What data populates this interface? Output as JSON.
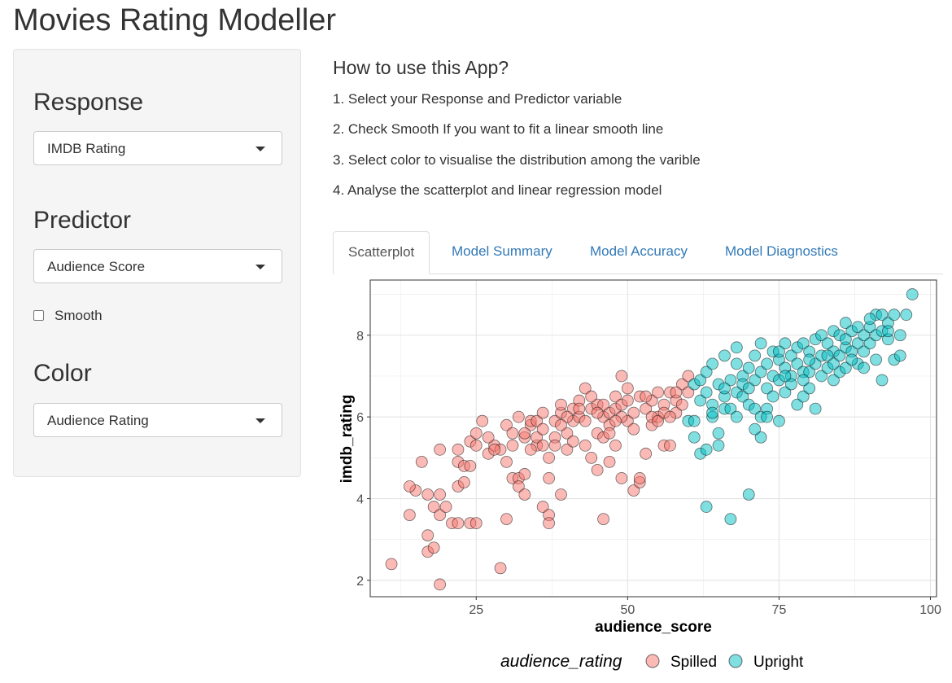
{
  "app": {
    "title": "Movies Rating Modeller"
  },
  "sidebar": {
    "response": {
      "label": "Response",
      "selected": "IMDB Rating"
    },
    "predictor": {
      "label": "Predictor",
      "selected": "Audience Score"
    },
    "smooth": {
      "label": "Smooth",
      "checked": false
    },
    "color": {
      "label": "Color",
      "selected": "Audience Rating"
    }
  },
  "help": {
    "title": "How to use this App?",
    "steps": [
      "1. Select your Response and Predictor variable",
      "2. Check Smooth If you want to fit a linear smooth line",
      "3. Select color to visualise the distribution among the varible",
      "4. Analyse the scatterplot and linear regression model"
    ]
  },
  "tabs": [
    {
      "label": "Scatterplot",
      "active": true
    },
    {
      "label": "Model Summary",
      "active": false
    },
    {
      "label": "Model Accuracy",
      "active": false
    },
    {
      "label": "Model Diagnostics",
      "active": false
    }
  ],
  "chart_data": {
    "type": "scatter",
    "xlabel": "audience_score",
    "ylabel": "imdb_rating",
    "xlim": [
      7.5,
      101
    ],
    "ylim": [
      1.6,
      9.35
    ],
    "xticks": [
      25,
      50,
      75,
      100
    ],
    "yticks": [
      2,
      4,
      6,
      8
    ],
    "grid": true,
    "legend": {
      "title": "audience_rating",
      "position": "bottom"
    },
    "series": [
      {
        "name": "Spilled",
        "color": "#F8766D",
        "points": [
          [
            11,
            2.4
          ],
          [
            14,
            3.6
          ],
          [
            15,
            4.2
          ],
          [
            14,
            4.3
          ],
          [
            16,
            4.9
          ],
          [
            17,
            3.1
          ],
          [
            17,
            2.7
          ],
          [
            18,
            2.8
          ],
          [
            19,
            1.9
          ],
          [
            17,
            4.1
          ],
          [
            19,
            4.1
          ],
          [
            18,
            3.8
          ],
          [
            19,
            3.6
          ],
          [
            19,
            5.2
          ],
          [
            20,
            3.8
          ],
          [
            21,
            3.4
          ],
          [
            22,
            3.4
          ],
          [
            22,
            4.3
          ],
          [
            23,
            4.4
          ],
          [
            22,
            4.9
          ],
          [
            24,
            3.4
          ],
          [
            25,
            3.4
          ],
          [
            22,
            5.2
          ],
          [
            24,
            5.4
          ],
          [
            23,
            4.8
          ],
          [
            24,
            4.8
          ],
          [
            25,
            5.6
          ],
          [
            26,
            5.9
          ],
          [
            25,
            5.3
          ],
          [
            27,
            5.1
          ],
          [
            28,
            5.3
          ],
          [
            29,
            5.2
          ],
          [
            29,
            2.3
          ],
          [
            30,
            3.5
          ],
          [
            30,
            4.9
          ],
          [
            31,
            4.5
          ],
          [
            31,
            5.3
          ],
          [
            32,
            4.5
          ],
          [
            32,
            4.3
          ],
          [
            33,
            4.1
          ],
          [
            33,
            4.6
          ],
          [
            33,
            5.5
          ],
          [
            34,
            5.8
          ],
          [
            34,
            5.9
          ],
          [
            35,
            5.3
          ],
          [
            35,
            5.9
          ],
          [
            36,
            6.1
          ],
          [
            36,
            3.8
          ],
          [
            37,
            3.6
          ],
          [
            37,
            3.4
          ],
          [
            37,
            4.5
          ],
          [
            37,
            5.0
          ],
          [
            38,
            5.5
          ],
          [
            38,
            5.9
          ],
          [
            39,
            6.1
          ],
          [
            39,
            6.3
          ],
          [
            39,
            4.1
          ],
          [
            40,
            5.2
          ],
          [
            40,
            5.6
          ],
          [
            41,
            5.9
          ],
          [
            41,
            6.2
          ],
          [
            42,
            6.4
          ],
          [
            42,
            6.0
          ],
          [
            43,
            6.7
          ],
          [
            43,
            5.3
          ],
          [
            44,
            5.0
          ],
          [
            44,
            6.2
          ],
          [
            45,
            6.3
          ],
          [
            45,
            5.6
          ],
          [
            45,
            4.7
          ],
          [
            46,
            5.5
          ],
          [
            46,
            6.0
          ],
          [
            46,
            3.5
          ],
          [
            47,
            5.8
          ],
          [
            47,
            6.1
          ],
          [
            47,
            4.9
          ],
          [
            48,
            6.5
          ],
          [
            48,
            6.2
          ],
          [
            48,
            5.3
          ],
          [
            49,
            7.0
          ],
          [
            49,
            6.3
          ],
          [
            49,
            4.5
          ],
          [
            50,
            6.4
          ],
          [
            50,
            5.9
          ],
          [
            51,
            6.1
          ],
          [
            51,
            4.2
          ],
          [
            52,
            6.5
          ],
          [
            52,
            4.4
          ],
          [
            52,
            4.5
          ],
          [
            53,
            6.2
          ],
          [
            53,
            5.1
          ],
          [
            54,
            6.4
          ],
          [
            54,
            5.8
          ],
          [
            55,
            6.6
          ],
          [
            55,
            6.0
          ],
          [
            56,
            6.3
          ],
          [
            56,
            5.3
          ],
          [
            57,
            6.6
          ],
          [
            57,
            5.3
          ],
          [
            58,
            6.4
          ],
          [
            58,
            6.1
          ],
          [
            59,
            6.8
          ],
          [
            59,
            6.3
          ],
          [
            60,
            6.6
          ],
          [
            60,
            7.0
          ],
          [
            27,
            5.5
          ],
          [
            28,
            5.2
          ],
          [
            30,
            5.8
          ],
          [
            31,
            5.6
          ],
          [
            32,
            6.0
          ],
          [
            34,
            5.2
          ],
          [
            35,
            5.5
          ],
          [
            36,
            5.7
          ],
          [
            38,
            5.3
          ],
          [
            40,
            6.0
          ],
          [
            41,
            5.4
          ],
          [
            43,
            5.9
          ],
          [
            44,
            6.5
          ],
          [
            46,
            6.3
          ],
          [
            47,
            5.6
          ],
          [
            49,
            6.0
          ],
          [
            50,
            6.7
          ],
          [
            51,
            5.7
          ],
          [
            53,
            6.5
          ],
          [
            54,
            6.0
          ],
          [
            55,
            5.9
          ],
          [
            56,
            6.1
          ],
          [
            57,
            6.0
          ],
          [
            58,
            6.6
          ],
          [
            42,
            6.2
          ],
          [
            39,
            5.8
          ],
          [
            36,
            5.3
          ],
          [
            33,
            5.6
          ],
          [
            45,
            6.1
          ],
          [
            48,
            5.9
          ]
        ]
      },
      {
        "name": "Upright",
        "color": "#00BFC4",
        "points": [
          [
            60,
            5.9
          ],
          [
            61,
            6.8
          ],
          [
            61,
            5.5
          ],
          [
            61,
            5.9
          ],
          [
            62,
            6.4
          ],
          [
            62,
            5.1
          ],
          [
            62,
            6.9
          ],
          [
            63,
            6.6
          ],
          [
            63,
            7.1
          ],
          [
            63,
            5.2
          ],
          [
            64,
            6.3
          ],
          [
            64,
            7.3
          ],
          [
            64,
            6.0
          ],
          [
            65,
            6.8
          ],
          [
            65,
            5.3
          ],
          [
            65,
            5.6
          ],
          [
            66,
            7.5
          ],
          [
            66,
            6.2
          ],
          [
            66,
            6.5
          ],
          [
            67,
            6.9
          ],
          [
            67,
            6.2
          ],
          [
            67,
            3.5
          ],
          [
            68,
            7.3
          ],
          [
            68,
            6.6
          ],
          [
            68,
            6.0
          ],
          [
            69,
            7.0
          ],
          [
            69,
            6.5
          ],
          [
            70,
            7.2
          ],
          [
            70,
            6.3
          ],
          [
            70,
            4.1
          ],
          [
            71,
            7.5
          ],
          [
            71,
            6.9
          ],
          [
            71,
            6.2
          ],
          [
            72,
            7.8
          ],
          [
            72,
            7.1
          ],
          [
            72,
            6.0
          ],
          [
            72,
            5.5
          ],
          [
            73,
            7.3
          ],
          [
            73,
            6.7
          ],
          [
            73,
            6.2
          ],
          [
            74,
            7.6
          ],
          [
            74,
            7.0
          ],
          [
            74,
            6.5
          ],
          [
            75,
            7.4
          ],
          [
            75,
            6.9
          ],
          [
            75,
            5.9
          ],
          [
            76,
            7.8
          ],
          [
            76,
            7.2
          ],
          [
            76,
            6.6
          ],
          [
            77,
            7.5
          ],
          [
            77,
            7.0
          ],
          [
            78,
            7.7
          ],
          [
            78,
            7.3
          ],
          [
            78,
            6.3
          ],
          [
            79,
            7.8
          ],
          [
            79,
            7.1
          ],
          [
            79,
            6.5
          ],
          [
            80,
            7.6
          ],
          [
            80,
            7.1
          ],
          [
            80,
            6.7
          ],
          [
            81,
            7.9
          ],
          [
            81,
            7.3
          ],
          [
            81,
            6.2
          ],
          [
            82,
            8.0
          ],
          [
            82,
            7.5
          ],
          [
            82,
            7.0
          ],
          [
            83,
            7.8
          ],
          [
            83,
            7.2
          ],
          [
            84,
            8.1
          ],
          [
            84,
            7.6
          ],
          [
            84,
            6.9
          ],
          [
            85,
            8.0
          ],
          [
            85,
            7.5
          ],
          [
            85,
            7.1
          ],
          [
            86,
            8.3
          ],
          [
            86,
            7.7
          ],
          [
            86,
            7.2
          ],
          [
            87,
            8.1
          ],
          [
            87,
            7.6
          ],
          [
            88,
            8.2
          ],
          [
            88,
            7.8
          ],
          [
            88,
            7.3
          ],
          [
            89,
            8.0
          ],
          [
            89,
            7.6
          ],
          [
            90,
            8.2
          ],
          [
            90,
            7.8
          ],
          [
            91,
            8.5
          ],
          [
            91,
            8.0
          ],
          [
            91,
            7.4
          ],
          [
            92,
            8.5
          ],
          [
            92,
            8.1
          ],
          [
            92,
            6.9
          ],
          [
            93,
            8.3
          ],
          [
            93,
            7.9
          ],
          [
            94,
            8.5
          ],
          [
            94,
            7.4
          ],
          [
            95,
            7.5
          ],
          [
            95,
            8.0
          ],
          [
            96,
            8.5
          ],
          [
            97,
            9.0
          ],
          [
            63,
            3.8
          ],
          [
            64,
            6.1
          ],
          [
            66,
            6.7
          ],
          [
            69,
            6.8
          ],
          [
            71,
            5.7
          ],
          [
            73,
            6.0
          ],
          [
            75,
            7.6
          ],
          [
            77,
            6.8
          ],
          [
            79,
            6.9
          ],
          [
            83,
            7.5
          ],
          [
            87,
            7.4
          ],
          [
            89,
            7.2
          ],
          [
            90,
            8.4
          ],
          [
            93,
            8.1
          ],
          [
            76,
            7.0
          ],
          [
            80,
            7.4
          ],
          [
            84,
            7.3
          ],
          [
            86,
            7.9
          ],
          [
            68,
            7.7
          ],
          [
            70,
            6.7
          ]
        ]
      }
    ]
  }
}
